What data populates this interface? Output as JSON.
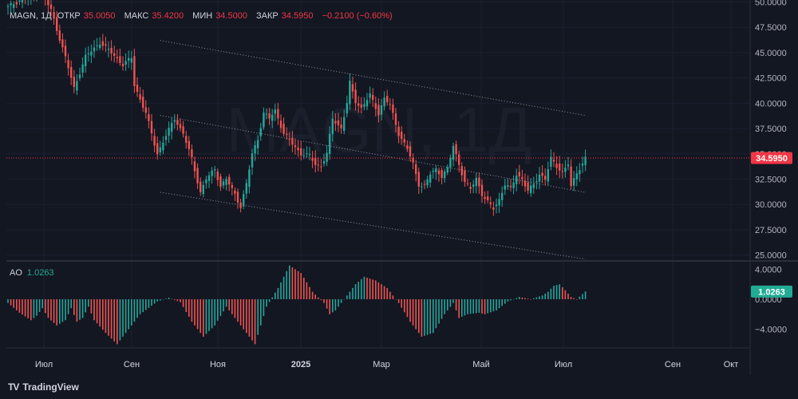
{
  "header": {
    "symbol": "MAGN, 1Д",
    "open_label": "ОТКР",
    "open_value": "35.0050",
    "high_label": "МАКС",
    "high_value": "35.4200",
    "low_label": "МИН",
    "low_value": "34.5000",
    "close_label": "ЗАКР",
    "close_value": "34.5950",
    "change": "−0.2100 (−0.60%)"
  },
  "watermark": "MAGN, 1Д",
  "ao": {
    "label": "AO",
    "value": "1.0263"
  },
  "brand": {
    "mark": "TV",
    "name": "TradingView"
  },
  "colors": {
    "background": "#131722",
    "up": "#26a69a",
    "down": "#ef5350",
    "price_badge": "#f23645",
    "ao_badge": "#22ab94"
  },
  "chart_data": [
    {
      "type": "candlestick",
      "title": "MAGN, 1Д",
      "ylim": [
        24.5,
        50.2
      ],
      "y_ticks": [
        "25.0000",
        "27.5000",
        "30.0000",
        "32.5000",
        "35.0000",
        "37.5000",
        "40.0000",
        "42.5000",
        "45.0000",
        "47.5000",
        "50.0000"
      ],
      "x_ticks": [
        "Июл",
        "Сен",
        "Ноя",
        "2025",
        "Мар",
        "Май",
        "Июл",
        "Сен",
        "Окт"
      ],
      "last_price": 34.595,
      "last_price_label": "34.5950",
      "price_anchors": [
        [
          0,
          49.5
        ],
        [
          6,
          50.5
        ],
        [
          12,
          50.8
        ],
        [
          15,
          49.2
        ],
        [
          20,
          44.5
        ],
        [
          23,
          41.5
        ],
        [
          27,
          44.6
        ],
        [
          32,
          46.0
        ],
        [
          36,
          45.0
        ],
        [
          40,
          43.8
        ],
        [
          43,
          44.5
        ],
        [
          44,
          41.8
        ],
        [
          48,
          39.0
        ],
        [
          50,
          37.0
        ],
        [
          52,
          35.0
        ],
        [
          55,
          36.8
        ],
        [
          58,
          38.5
        ],
        [
          61,
          37.0
        ],
        [
          64,
          34.5
        ],
        [
          67,
          31.2
        ],
        [
          69,
          32.5
        ],
        [
          72,
          33.5
        ],
        [
          74,
          31.8
        ],
        [
          76,
          32.5
        ],
        [
          79,
          31.0
        ],
        [
          81,
          29.8
        ],
        [
          83,
          32.0
        ],
        [
          85,
          35.0
        ],
        [
          87,
          36.5
        ],
        [
          89,
          39.0
        ],
        [
          91,
          38.5
        ],
        [
          93,
          39.3
        ],
        [
          96,
          37.0
        ],
        [
          99,
          36.0
        ],
        [
          102,
          35.0
        ],
        [
          105,
          34.8
        ],
        [
          107,
          34.0
        ],
        [
          109,
          33.8
        ],
        [
          111,
          35.0
        ],
        [
          113,
          38.5
        ],
        [
          116,
          37.5
        ],
        [
          118,
          40.0
        ],
        [
          119,
          42.0
        ],
        [
          121,
          40.2
        ],
        [
          123,
          39.5
        ],
        [
          126,
          40.8
        ],
        [
          129,
          39.0
        ],
        [
          131,
          40.5
        ],
        [
          133,
          39.8
        ],
        [
          136,
          37.0
        ],
        [
          139,
          35.5
        ],
        [
          141,
          34.0
        ],
        [
          143,
          32.0
        ],
        [
          145,
          31.8
        ],
        [
          147,
          33.0
        ],
        [
          149,
          33.5
        ],
        [
          151,
          32.8
        ],
        [
          153,
          33.5
        ],
        [
          155,
          35.8
        ],
        [
          157,
          34.0
        ],
        [
          159,
          32.2
        ],
        [
          161,
          31.5
        ],
        [
          163,
          32.6
        ],
        [
          165,
          31.0
        ],
        [
          167,
          30.2
        ],
        [
          169,
          29.6
        ],
        [
          171,
          30.5
        ],
        [
          173,
          32.0
        ],
        [
          175,
          31.5
        ],
        [
          177,
          33.0
        ],
        [
          179,
          32.5
        ],
        [
          181,
          31.3
        ],
        [
          183,
          32.0
        ],
        [
          185,
          33.0
        ],
        [
          187,
          32.5
        ],
        [
          189,
          34.5
        ],
        [
          191,
          33.8
        ],
        [
          193,
          33.2
        ],
        [
          195,
          34.0
        ],
        [
          196,
          31.7
        ],
        [
          198,
          33.2
        ],
        [
          200,
          34.0
        ],
        [
          201,
          34.6
        ]
      ],
      "channel_upper": [
        [
          53,
          46.2
        ],
        [
          201,
          38.8
        ]
      ],
      "channel_middle": [
        [
          53,
          38.8
        ],
        [
          201,
          31.2
        ]
      ],
      "channel_lower": [
        [
          53,
          31.2
        ],
        [
          201,
          24.6
        ]
      ]
    },
    {
      "type": "bar",
      "title": "AO",
      "value_label": "1.0263",
      "ylim": [
        -6.5,
        5.0
      ],
      "y_ticks": [
        "4.0000",
        "0.0000",
        "−4.0000"
      ],
      "ao_anchors": [
        [
          0,
          -0.5
        ],
        [
          4,
          -1.8
        ],
        [
          8,
          -2.8
        ],
        [
          10,
          -2.2
        ],
        [
          12,
          -1.2
        ],
        [
          14,
          -2.5
        ],
        [
          17,
          -3.5
        ],
        [
          20,
          -2.8
        ],
        [
          22,
          -1.2
        ],
        [
          24,
          -3.0
        ],
        [
          26,
          -2.5
        ],
        [
          28,
          -1.0
        ],
        [
          30,
          -2.8
        ],
        [
          34,
          -4.5
        ],
        [
          38,
          -6.0
        ],
        [
          42,
          -4.0
        ],
        [
          46,
          -2.0
        ],
        [
          52,
          -0.3
        ],
        [
          56,
          0.2
        ],
        [
          60,
          -0.4
        ],
        [
          64,
          -3.0
        ],
        [
          68,
          -5.0
        ],
        [
          72,
          -3.5
        ],
        [
          76,
          -1.0
        ],
        [
          79,
          -2.5
        ],
        [
          82,
          -4.0
        ],
        [
          86,
          -6.0
        ],
        [
          88,
          -3.5
        ],
        [
          90,
          -1.0
        ],
        [
          94,
          1.5
        ],
        [
          98,
          4.5
        ],
        [
          102,
          3.5
        ],
        [
          106,
          1.0
        ],
        [
          110,
          -0.5
        ],
        [
          112,
          -2.0
        ],
        [
          114,
          -1.5
        ],
        [
          118,
          0.5
        ],
        [
          121,
          2.0
        ],
        [
          124,
          3.0
        ],
        [
          128,
          2.5
        ],
        [
          132,
          1.5
        ],
        [
          136,
          -0.5
        ],
        [
          140,
          -3.0
        ],
        [
          144,
          -5.0
        ],
        [
          148,
          -4.5
        ],
        [
          152,
          -2.0
        ],
        [
          155,
          -0.5
        ],
        [
          157,
          -2.5
        ],
        [
          160,
          -2.0
        ],
        [
          164,
          -1.8
        ],
        [
          166,
          -2.0
        ],
        [
          170,
          -1.5
        ],
        [
          174,
          -0.3
        ],
        [
          178,
          0.3
        ],
        [
          182,
          0.0
        ],
        [
          186,
          0.5
        ],
        [
          188,
          1.0
        ],
        [
          190,
          1.8
        ],
        [
          192,
          2.0
        ],
        [
          194,
          1.2
        ],
        [
          196,
          0.3
        ],
        [
          198,
          0.0
        ],
        [
          201,
          1.03
        ]
      ]
    }
  ]
}
